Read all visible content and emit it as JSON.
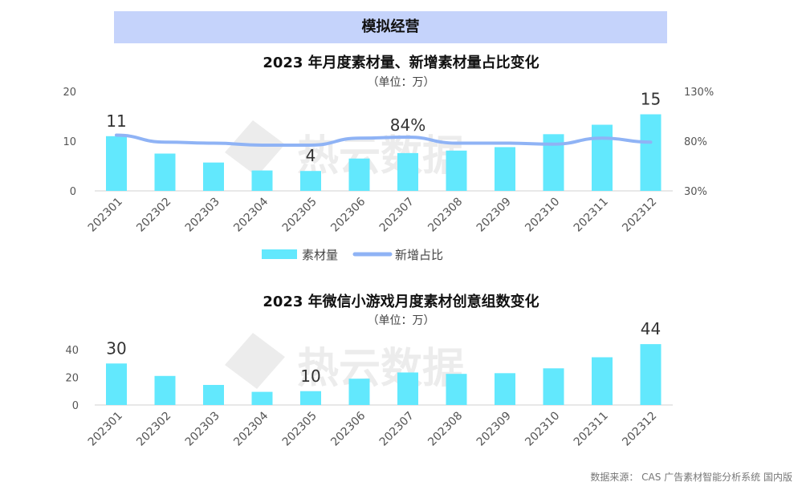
{
  "header": {
    "banner": "模拟经营"
  },
  "chart_data": [
    {
      "type": "bar+line",
      "title": "2023 年月度素材量、新增素材量占比变化",
      "subtitle": "（单位：万）",
      "categories": [
        "202301",
        "202302",
        "202303",
        "202304",
        "202305",
        "202306",
        "202307",
        "202308",
        "202309",
        "202310",
        "202311",
        "202312"
      ],
      "series": [
        {
          "name": "素材量",
          "type": "bar",
          "axis": "left",
          "values": [
            11,
            7.5,
            5.7,
            4.1,
            4,
            6.5,
            7.6,
            8.1,
            8.8,
            11.4,
            13.3,
            15.4
          ],
          "data_labels": {
            "0": "11",
            "4": "4",
            "11": "15"
          }
        },
        {
          "name": "新增占比",
          "type": "line",
          "axis": "right",
          "values": [
            86,
            79,
            78,
            76,
            76,
            83,
            84,
            78,
            78,
            77,
            83,
            79
          ],
          "data_labels": {
            "6": "84%"
          }
        }
      ],
      "y_left": {
        "ticks": [
          "0",
          "10",
          "20"
        ],
        "min": 0,
        "max": 20
      },
      "y_right": {
        "ticks": [
          "30%",
          "80%",
          "130%"
        ],
        "min": 30,
        "max": 130
      },
      "legend": "bottom",
      "colors": {
        "bar": "#62e8fd",
        "line": "#8fb3f5"
      }
    },
    {
      "type": "bar",
      "title": "2023 年微信小游戏月度素材创意组数变化",
      "subtitle": "（单位：万）",
      "categories": [
        "202301",
        "202302",
        "202303",
        "202304",
        "202305",
        "202306",
        "202307",
        "202308",
        "202309",
        "202310",
        "202311",
        "202312"
      ],
      "series": [
        {
          "name": "",
          "values": [
            30,
            21,
            14.5,
            9.5,
            10,
            19,
            23.5,
            22.5,
            23,
            26.5,
            34.5,
            44
          ],
          "data_labels": {
            "0": "30",
            "4": "10",
            "11": "44"
          }
        }
      ],
      "y_left": {
        "ticks": [
          "0",
          "20",
          "40"
        ],
        "min": 0,
        "max": 40
      },
      "colors": {
        "bar": "#62e8fd"
      }
    }
  ],
  "watermark": {
    "text": "热云数据"
  },
  "footer": {
    "source": "数据来源： CAS 广告素材智能分析系统 国内版"
  }
}
